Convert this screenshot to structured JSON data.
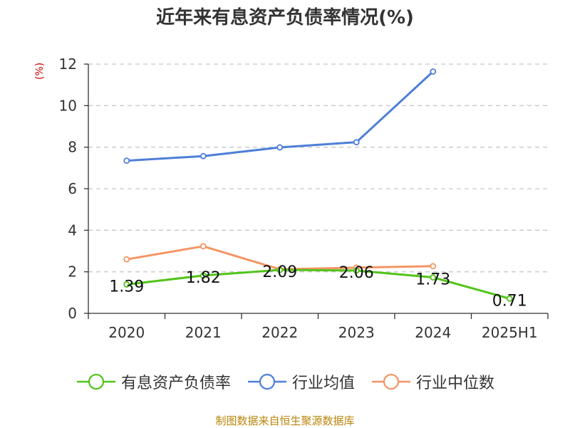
{
  "chart_data": {
    "type": "line",
    "title": "近年来有息资产负债率情况(%)",
    "ylabel": "(%)",
    "xlabel": "",
    "categories": [
      "2020",
      "2021",
      "2022",
      "2023",
      "2024",
      "2025H1"
    ],
    "ylim": [
      0,
      12
    ],
    "yticks": [
      0,
      2,
      4,
      6,
      8,
      10,
      12
    ],
    "grid": true,
    "legend_position": "bottom",
    "series": [
      {
        "name": "有息资产负债率",
        "color": "#52c41a",
        "values": [
          1.39,
          1.82,
          2.09,
          2.06,
          1.73,
          0.71
        ],
        "labels": [
          "1.39",
          "1.82",
          "2.09",
          "2.06",
          "1.73",
          "0.71"
        ]
      },
      {
        "name": "行业均值",
        "color": "#4e7fd8",
        "values": [
          7.35,
          7.57,
          7.99,
          8.24,
          11.64,
          null
        ]
      },
      {
        "name": "行业中位数",
        "color": "#f49564",
        "values": [
          2.6,
          3.23,
          2.12,
          2.2,
          2.27,
          null
        ]
      }
    ]
  },
  "source": "制图数据来自恒生聚源数据库"
}
